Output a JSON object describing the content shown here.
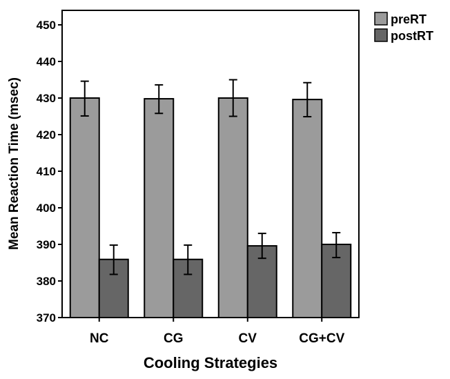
{
  "chart_data": {
    "type": "bar",
    "title": "",
    "xlabel": "Cooling Strategies",
    "ylabel": "Mean Reaction Time (msec)",
    "ylim": [
      370,
      450
    ],
    "yticks": [
      370,
      380,
      390,
      400,
      410,
      420,
      430,
      440,
      450
    ],
    "categories": [
      "NC",
      "CG",
      "CV",
      "CG+CV"
    ],
    "series": [
      {
        "name": "preRT",
        "color": "#9b9b9b",
        "values": [
          430.0,
          429.8,
          430.0,
          429.6
        ],
        "error_low": [
          425.1,
          425.8,
          425.0,
          424.9
        ],
        "error_high": [
          434.6,
          433.6,
          435.0,
          434.2
        ]
      },
      {
        "name": "postRT",
        "color": "#666666",
        "values": [
          385.9,
          385.9,
          389.6,
          390.0
        ],
        "error_low": [
          381.8,
          381.8,
          386.2,
          386.4
        ],
        "error_high": [
          389.8,
          389.8,
          393.0,
          393.2
        ]
      }
    ],
    "legend_position": "top-right-outside",
    "grid": false
  }
}
